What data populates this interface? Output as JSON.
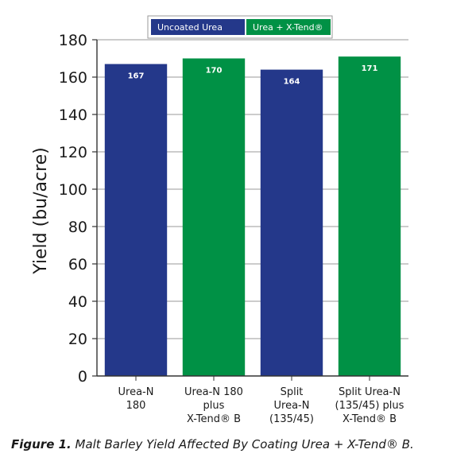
{
  "caption": {
    "figure_label": "Figure 1.",
    "text": " Malt Barley Yield Affected By Coating Urea + X-Tend® B."
  },
  "chart_data": {
    "type": "bar",
    "ylabel": "Yield (bu/acre)",
    "xlabel": "",
    "ylim": [
      0,
      180
    ],
    "yticks": [
      0,
      20,
      40,
      60,
      80,
      100,
      120,
      140,
      160,
      180
    ],
    "grid": true,
    "legend_position": "top-right",
    "legend": [
      {
        "name": "Uncoated Urea",
        "color": "#24388a"
      },
      {
        "name": "Urea + X-Tend®",
        "color": "#009145"
      }
    ],
    "bars": [
      {
        "category": [
          "Urea-N",
          "180"
        ],
        "value": 167,
        "series": 0
      },
      {
        "category": [
          "Urea-N 180",
          "plus",
          "X-Tend® B"
        ],
        "value": 170,
        "series": 1
      },
      {
        "category": [
          "Split",
          "Urea-N",
          "(135/45)"
        ],
        "value": 164,
        "series": 0
      },
      {
        "category": [
          "Split Urea-N",
          "(135/45) plus",
          "X-Tend® B"
        ],
        "value": 171,
        "series": 1
      }
    ]
  }
}
